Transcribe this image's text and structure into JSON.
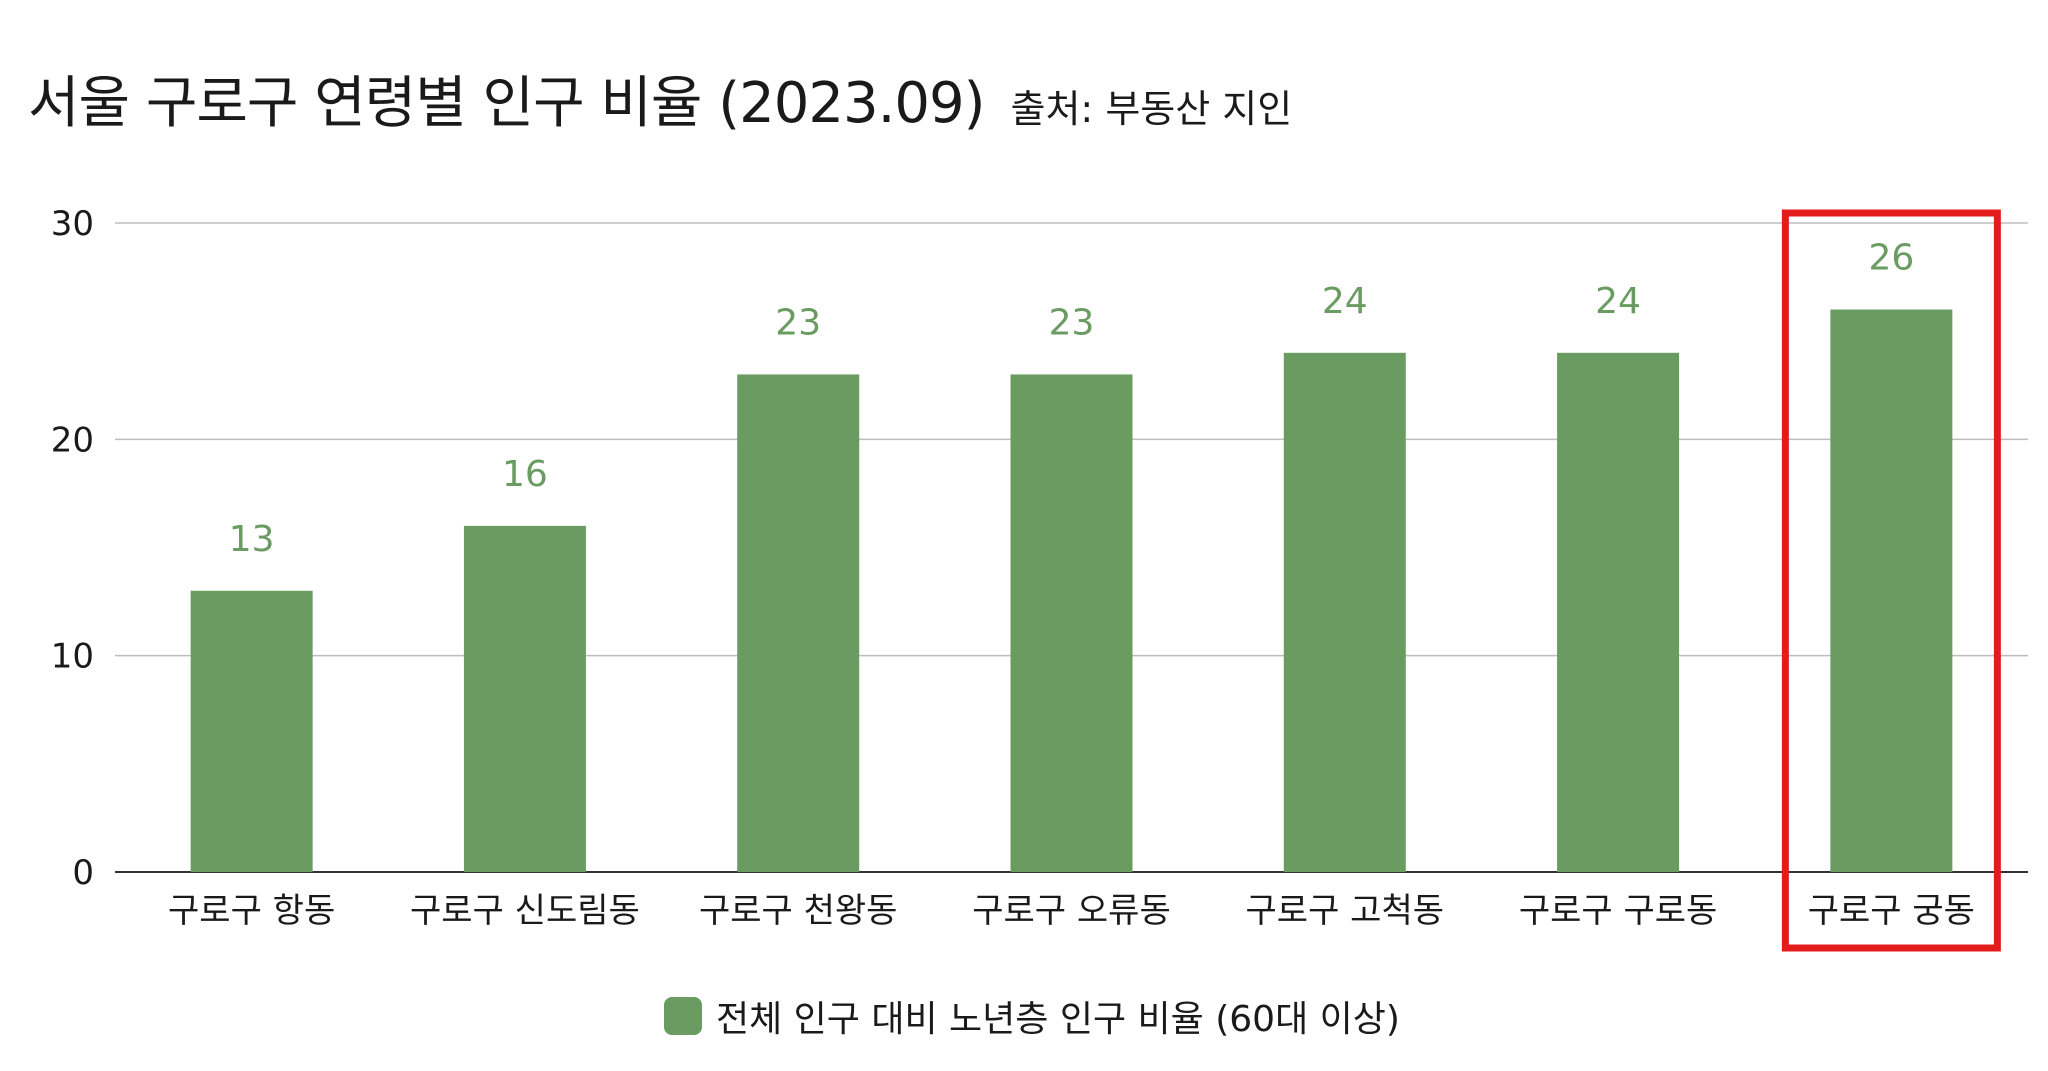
{
  "header": {
    "title": "서울 구로구 연령별 인구 비율 (2023.09)",
    "source": "출처: 부동산 지인"
  },
  "chart_data": {
    "type": "bar",
    "categories": [
      "구로구 항동",
      "구로구 신도림동",
      "구로구 천왕동",
      "구로구 오류동",
      "구로구 고척동",
      "구로구 구로동",
      "구로구 궁동"
    ],
    "series": [
      {
        "name": "전체 인구 대비 노년층 인구 비율 (60대 이상)",
        "values": [
          13,
          16,
          23,
          23,
          24,
          24,
          26
        ]
      }
    ],
    "data_labels": [
      "13",
      "16",
      "23",
      "23",
      "24",
      "24",
      "26"
    ],
    "y_ticks": [
      "0",
      "10",
      "20",
      "30"
    ],
    "ylim": [
      0,
      30
    ],
    "grid": true,
    "legend_position": "bottom",
    "highlighted_category": "구로구 궁동",
    "colors": {
      "bar": "#6a9c62",
      "label": "#6a9c62",
      "highlight": "#e31b1b",
      "grid": "#bdbdbd",
      "axis": "#333333"
    }
  }
}
